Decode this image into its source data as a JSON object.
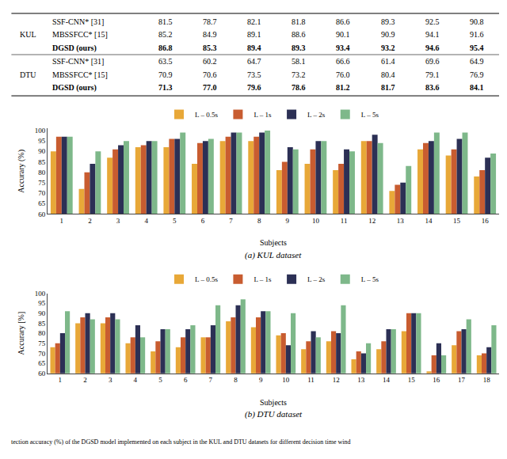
{
  "chart_data": [
    {
      "type": "table",
      "title": "KUL",
      "series": [
        {
          "name": "SSF-CNN* [31]",
          "values": [
            81.5,
            78.7,
            82.1,
            81.8,
            86.6,
            89.3,
            92.5,
            90.8
          ]
        },
        {
          "name": "MBSSFCC* [15]",
          "values": [
            85.2,
            84.9,
            89.1,
            88.6,
            90.1,
            90.9,
            94.1,
            91.6
          ]
        },
        {
          "name": "DGSD (ours)",
          "values": [
            86.8,
            85.3,
            89.4,
            89.3,
            93.4,
            93.2,
            94.6,
            95.4
          ]
        }
      ]
    },
    {
      "type": "table",
      "title": "DTU",
      "series": [
        {
          "name": "SSF-CNN* [31]",
          "values": [
            63.5,
            60.2,
            64.7,
            58.1,
            66.6,
            61.4,
            69.6,
            64.9
          ]
        },
        {
          "name": "MBSSFCC* [15]",
          "values": [
            70.9,
            70.6,
            73.5,
            73.2,
            76.0,
            80.4,
            79.1,
            76.9
          ],
          "value_labels": [
            "70.9",
            "70.6",
            "73.5",
            "73.2",
            "76.0",
            "80.4",
            "79.1",
            "76.9"
          ]
        },
        {
          "name": "DGSD (ours)",
          "values": [
            71.3,
            77.0,
            79.6,
            78.6,
            81.2,
            81.7,
            83.6,
            84.1
          ],
          "value_labels": [
            "71.3",
            "77.0",
            "79.6",
            "78.6",
            "81.2",
            "81.7",
            "83.6",
            "84.1"
          ]
        }
      ]
    },
    {
      "type": "bar",
      "title": "(a) KUL dataset",
      "xlabel": "Subjects",
      "ylabel": "Accurary (%)",
      "categories": [
        1,
        2,
        3,
        4,
        5,
        6,
        7,
        8,
        9,
        10,
        11,
        12,
        13,
        14,
        15,
        16
      ],
      "series": [
        {
          "name": "L – 0.5s",
          "color": "#E8A838",
          "values": [
            90,
            72,
            87,
            92,
            92,
            84,
            95,
            95,
            81,
            84,
            81,
            95,
            71,
            91,
            88,
            78
          ]
        },
        {
          "name": "L – 1s",
          "color": "#C85C30",
          "values": [
            97,
            80,
            91,
            93,
            96,
            94,
            97,
            97,
            85,
            91,
            84,
            95,
            74,
            94,
            91,
            81
          ]
        },
        {
          "name": "L – 2s",
          "color": "#2C3055",
          "values": [
            97,
            84,
            93,
            95,
            96,
            95,
            99,
            99,
            92,
            95,
            91,
            98,
            75,
            95,
            96,
            87
          ]
        },
        {
          "name": "L – 5s",
          "color": "#7EB88A",
          "values": [
            97,
            90,
            95,
            95,
            99,
            96,
            99,
            100,
            91,
            95,
            90,
            94,
            83,
            99,
            99,
            89
          ]
        }
      ],
      "ylim": [
        60,
        101
      ],
      "yticks": [
        60,
        65,
        70,
        75,
        80,
        85,
        90,
        95,
        100
      ],
      "grid": false,
      "legend": "top"
    },
    {
      "type": "bar",
      "title": "(b) DTU dataset",
      "xlabel": "Subjects",
      "ylabel": "Accurary [%]",
      "categories": [
        1,
        2,
        3,
        4,
        5,
        6,
        7,
        8,
        9,
        10,
        11,
        12,
        13,
        14,
        15,
        16,
        17,
        18
      ],
      "series": [
        {
          "name": "L – 0.5s",
          "color": "#E8A838",
          "values": [
            73,
            85,
            85,
            75,
            71,
            73,
            78,
            86,
            83,
            79,
            72,
            76,
            67,
            72,
            81,
            61,
            74,
            69
          ]
        },
        {
          "name": "L – 1s",
          "color": "#C85C30",
          "values": [
            75,
            88,
            88,
            78,
            76,
            78,
            78,
            88,
            88,
            80,
            76,
            81,
            71,
            76,
            90,
            69,
            81,
            70
          ]
        },
        {
          "name": "L – 2s",
          "color": "#2C3055",
          "values": [
            80,
            90,
            90,
            84,
            82,
            82,
            84,
            94,
            91,
            74,
            81,
            80,
            70,
            82,
            90,
            75,
            82,
            73
          ]
        },
        {
          "name": "L – 5s",
          "color": "#7EB88A",
          "values": [
            91,
            87,
            87,
            78,
            82,
            84,
            94,
            97,
            91,
            90,
            78,
            94,
            75,
            82,
            90,
            69,
            87,
            84
          ]
        }
      ],
      "ylim": [
        60,
        100
      ],
      "yticks": [
        60,
        65,
        70,
        75,
        80,
        85,
        90,
        95,
        100
      ],
      "grid": false,
      "legend": "top",
      "annotations": [
        "tection accuracy (%) of the DGSD model implemented on each subject in the KUL and DTU datasets for different decision time wind"
      ]
    }
  ]
}
